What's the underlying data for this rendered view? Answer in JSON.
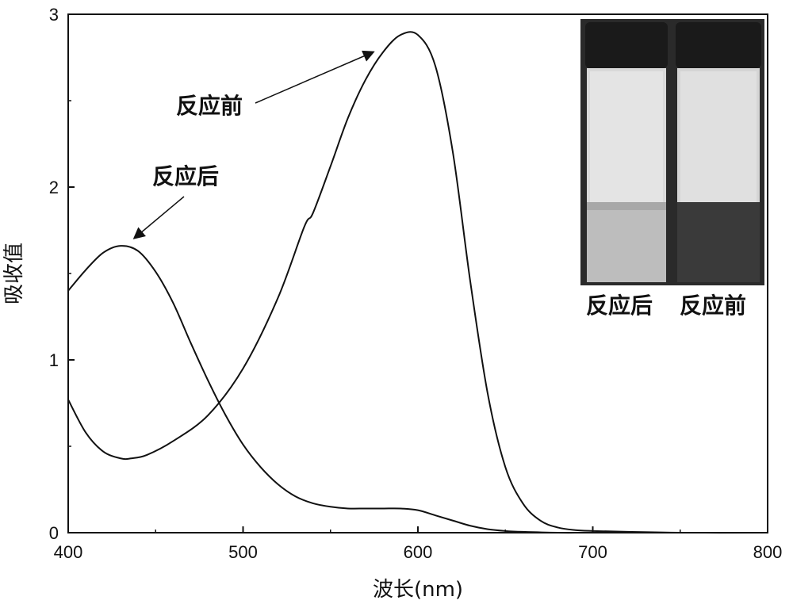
{
  "chart_data": {
    "type": "line",
    "title": "",
    "xlabel": "波长(nm)",
    "ylabel": "吸收值",
    "xlim": [
      400,
      800
    ],
    "ylim": [
      0,
      3
    ],
    "xticks": [
      400,
      500,
      600,
      700,
      800
    ],
    "yticks": [
      0,
      1,
      2,
      3
    ],
    "grid": false,
    "series": [
      {
        "name": "反应前",
        "x": [
          400,
          410,
          420,
          430,
          436,
          445,
          460,
          480,
          500,
          520,
          535,
          540,
          550,
          560,
          570,
          580,
          590,
          600,
          610,
          620,
          630,
          640,
          650,
          660,
          670,
          680,
          690,
          700,
          720,
          750,
          800
        ],
        "y": [
          0.77,
          0.58,
          0.47,
          0.43,
          0.43,
          0.45,
          0.53,
          0.68,
          0.95,
          1.36,
          1.77,
          1.85,
          2.12,
          2.4,
          2.62,
          2.78,
          2.88,
          2.88,
          2.7,
          2.2,
          1.45,
          0.8,
          0.38,
          0.17,
          0.07,
          0.03,
          0.015,
          0.01,
          0.005,
          0.0,
          0.0
        ]
      },
      {
        "name": "反应后",
        "x": [
          400,
          410,
          420,
          430,
          440,
          450,
          460,
          470,
          480,
          490,
          500,
          510,
          520,
          530,
          540,
          550,
          560,
          570,
          580,
          590,
          600,
          610,
          620,
          630,
          640,
          650,
          660,
          680,
          700,
          750,
          800
        ],
        "y": [
          1.4,
          1.52,
          1.62,
          1.66,
          1.63,
          1.51,
          1.33,
          1.1,
          0.88,
          0.68,
          0.51,
          0.38,
          0.28,
          0.21,
          0.17,
          0.15,
          0.14,
          0.14,
          0.14,
          0.14,
          0.13,
          0.1,
          0.07,
          0.04,
          0.02,
          0.01,
          0.005,
          0.0,
          0.0,
          0.0,
          0.0
        ]
      }
    ],
    "annotations": [
      {
        "text": "反应前",
        "arrow_to": [
          572,
          2.75
        ]
      },
      {
        "text": "反应后",
        "arrow_to": [
          430,
          1.67
        ]
      }
    ],
    "inset": {
      "labels": [
        "反应后",
        "反应前"
      ],
      "liquid_colors": [
        "#bdbdbd",
        "#3a3a3a"
      ]
    }
  }
}
